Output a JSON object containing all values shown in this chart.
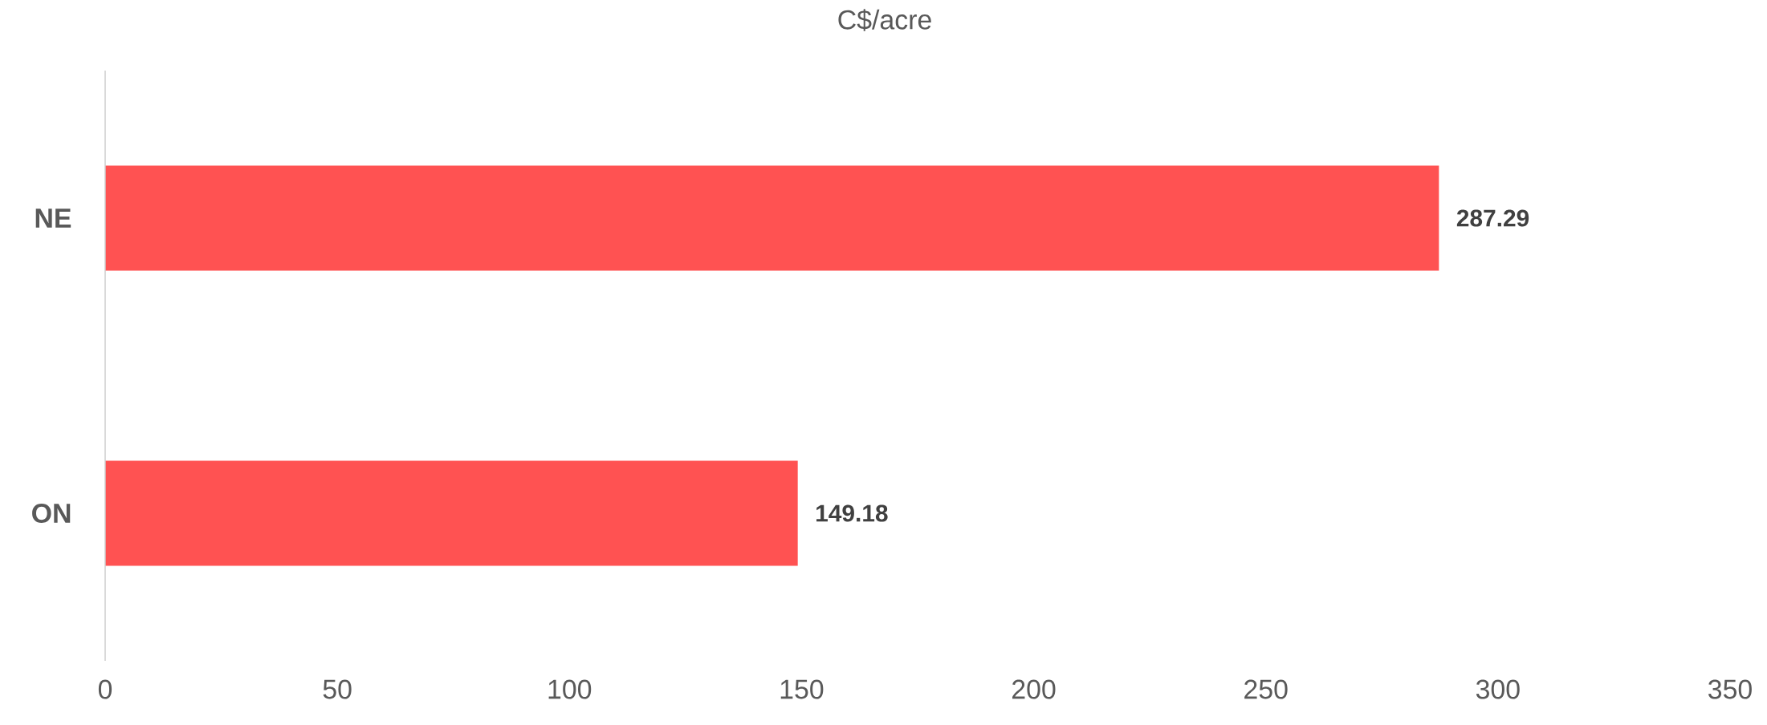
{
  "chart_data": {
    "type": "bar",
    "orientation": "horizontal",
    "title": "C$/acre",
    "categories": [
      "NE",
      "ON"
    ],
    "values": [
      287.29,
      149.18
    ],
    "color": "#ff5252",
    "xlim": [
      0,
      350
    ],
    "xticks": [
      0,
      50,
      100,
      150,
      200,
      250,
      300,
      350
    ],
    "data_labels": true
  }
}
